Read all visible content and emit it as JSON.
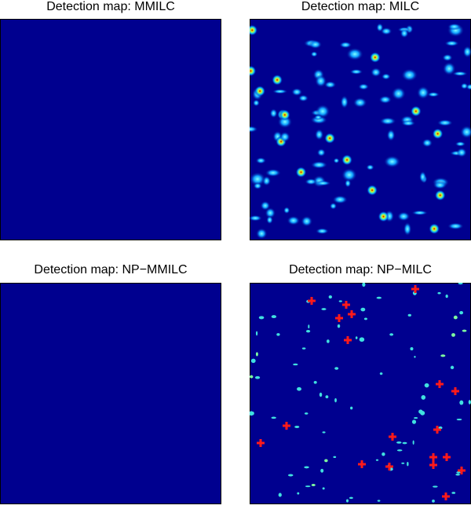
{
  "panels": [
    {
      "title": "Detection map: MMILC"
    },
    {
      "title": "Detection map: MILC"
    },
    {
      "title": "Detection map: NP−MMILC"
    },
    {
      "title": "Detection map: NP−MILC"
    }
  ]
}
